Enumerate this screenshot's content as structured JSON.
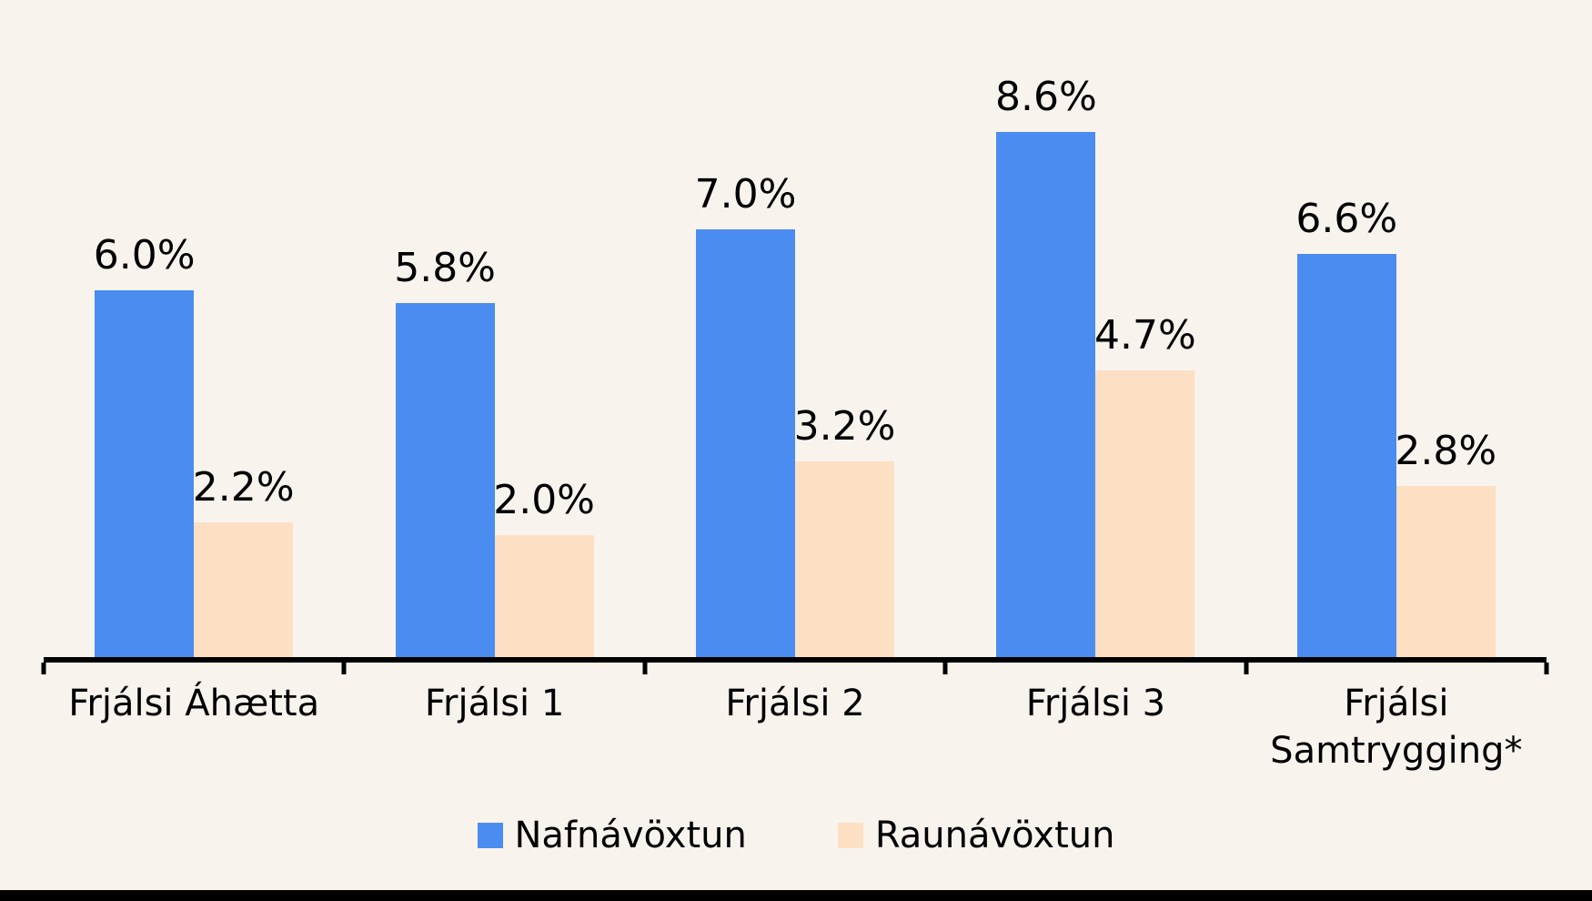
{
  "chart_data": {
    "type": "bar",
    "title": "",
    "categories": [
      "Frjálsi Áhætta",
      "Frjálsi 1",
      "Frjálsi 2",
      "Frjálsi 3",
      "Frjálsi Samtrygging*"
    ],
    "series": [
      {
        "name": "Nafnávöxtun",
        "color": "#4A8CEF",
        "values": [
          6.0,
          5.8,
          7.0,
          8.6,
          6.6
        ],
        "labels": [
          "6.0%",
          "5.8%",
          "7.0%",
          "8.6%",
          "6.6%"
        ]
      },
      {
        "name": "Raunávöxtun",
        "color": "#FDDFC3",
        "values": [
          2.2,
          2.0,
          3.2,
          4.7,
          2.8
        ],
        "labels": [
          "2.2%",
          "2.0%",
          "3.2%",
          "4.7%",
          "2.8%"
        ]
      }
    ],
    "xlabel": "",
    "ylabel": "",
    "ylim": [
      0,
      10.8
    ],
    "grid": false,
    "legend_position": "bottom",
    "background_color": "#F9F3EE",
    "axis_color": "#000000",
    "text_color": "#000000"
  }
}
